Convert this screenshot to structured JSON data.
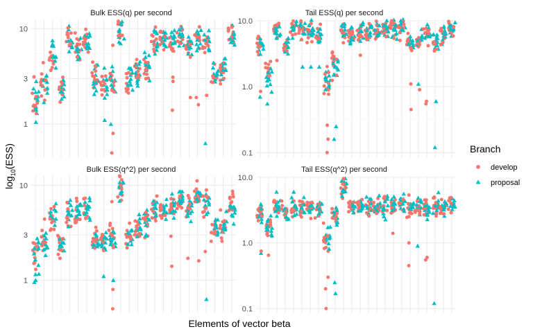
{
  "colors": {
    "develop": "#F8766D",
    "proposal": "#00BFC4",
    "grid_major": "#ebebeb",
    "grid_minor": "#f5f5f5"
  },
  "chart_data": {
    "type": "scatter",
    "xlabel": "Elements of vector beta",
    "ylabel_main": "log",
    "ylabel_sub": "10",
    "ylabel_tail": "(ESS)",
    "y_scale": "log10",
    "grid": true,
    "legend": {
      "title": "Branch",
      "placement": "right",
      "entries": [
        {
          "label": "develop",
          "shape": "circle"
        },
        {
          "label": "proposal",
          "shape": "triangle"
        }
      ]
    },
    "n_elements": 24,
    "panels": [
      {
        "title": "Bulk ESS(q) per second",
        "ylim": [
          0.45,
          12.5
        ],
        "y_ticks": [
          1,
          3,
          10
        ],
        "y_tick_labels": [
          "1",
          "3",
          "10"
        ],
        "centers": [
          1.9,
          2.6,
          5.0,
          2.5,
          7.8,
          6.3,
          7.2,
          3.0,
          2.6,
          2.8,
          9.5,
          2.9,
          3.4,
          4.2,
          7.2,
          8.3,
          7.6,
          8.0,
          6.5,
          8.2,
          7.0,
          3.4,
          3.7,
          8.5
        ],
        "outliers": [
          {
            "i": 0,
            "branch": "develop",
            "v": 1.3
          },
          {
            "i": 0,
            "branch": "proposal",
            "v": 1.05
          },
          {
            "i": 1,
            "branch": "develop",
            "v": 4.4
          },
          {
            "i": 3,
            "branch": "develop",
            "v": 1.7
          },
          {
            "i": 7,
            "branch": "develop",
            "v": 3.6
          },
          {
            "i": 8,
            "branch": "proposal",
            "v": 1.1
          },
          {
            "i": 9,
            "branch": "develop",
            "v": 0.8
          },
          {
            "i": 9,
            "branch": "develop",
            "v": 0.5
          },
          {
            "i": 9,
            "branch": "develop",
            "v": 6.7
          },
          {
            "i": 9,
            "branch": "proposal",
            "v": 1.0
          },
          {
            "i": 16,
            "branch": "develop",
            "v": 1.4
          },
          {
            "i": 16,
            "branch": "develop",
            "v": 2.8
          },
          {
            "i": 16,
            "branch": "develop",
            "v": 3.1
          },
          {
            "i": 18,
            "branch": "develop",
            "v": 1.9
          },
          {
            "i": 19,
            "branch": "develop",
            "v": 1.6
          },
          {
            "i": 19,
            "branch": "develop",
            "v": 1.9
          },
          {
            "i": 20,
            "branch": "proposal",
            "v": 0.63
          },
          {
            "i": 20,
            "branch": "develop",
            "v": 2.0
          }
        ]
      },
      {
        "title": "Tail ESS(q) per second",
        "ylim": [
          0.085,
          10.5
        ],
        "y_ticks": [
          0.1,
          1.0,
          10.0
        ],
        "y_tick_labels": [
          "0.1",
          "1.0",
          "10.0"
        ],
        "centers": [
          4.3,
          1.6,
          7.5,
          4.5,
          7.3,
          7.3,
          7.1,
          6.1,
          1.2,
          2.2,
          6.5,
          6.6,
          6.8,
          6.9,
          7.3,
          7.3,
          7.8,
          8.0,
          4.5,
          4.8,
          6.4,
          4.7,
          5.8,
          7.8
        ],
        "outliers": [
          {
            "i": 0,
            "branch": "proposal",
            "v": 0.7
          },
          {
            "i": 0,
            "branch": "develop",
            "v": 0.85
          },
          {
            "i": 1,
            "branch": "proposal",
            "v": 0.55
          },
          {
            "i": 2,
            "branch": "develop",
            "v": 2.5
          },
          {
            "i": 5,
            "branch": "proposal",
            "v": 2.0
          },
          {
            "i": 6,
            "branch": "proposal",
            "v": 2.0
          },
          {
            "i": 7,
            "branch": "proposal",
            "v": 2.0
          },
          {
            "i": 8,
            "branch": "develop",
            "v": 0.26
          },
          {
            "i": 8,
            "branch": "develop",
            "v": 0.16
          },
          {
            "i": 8,
            "branch": "develop",
            "v": 0.1
          },
          {
            "i": 9,
            "branch": "proposal",
            "v": 0.25
          },
          {
            "i": 9,
            "branch": "proposal",
            "v": 0.16
          },
          {
            "i": 12,
            "branch": "develop",
            "v": 3.0
          },
          {
            "i": 18,
            "branch": "develop",
            "v": 1.1
          },
          {
            "i": 18,
            "branch": "develop",
            "v": 0.45
          },
          {
            "i": 19,
            "branch": "proposal",
            "v": 1.1
          },
          {
            "i": 19,
            "branch": "develop",
            "v": 0.9
          },
          {
            "i": 20,
            "branch": "develop",
            "v": 0.6
          },
          {
            "i": 20,
            "branch": "develop",
            "v": 0.55
          },
          {
            "i": 21,
            "branch": "proposal",
            "v": 0.12
          },
          {
            "i": 21,
            "branch": "proposal",
            "v": 0.6
          }
        ]
      },
      {
        "title": "Bulk ESS(q^2) per second",
        "ylim": [
          0.45,
          12.5
        ],
        "y_ticks": [
          1,
          3,
          10
        ],
        "y_tick_labels": [
          "1",
          "3",
          "10"
        ],
        "centers": [
          1.9,
          2.5,
          4.4,
          2.5,
          5.0,
          5.3,
          5.6,
          2.6,
          2.5,
          2.8,
          9.5,
          2.9,
          3.4,
          4.2,
          5.3,
          5.5,
          6.0,
          7.0,
          6.0,
          8.0,
          6.8,
          3.4,
          3.7,
          5.8
        ],
        "outliers": [
          {
            "i": 0,
            "branch": "develop",
            "v": 1.3
          },
          {
            "i": 0,
            "branch": "proposal",
            "v": 1.0
          },
          {
            "i": 0,
            "branch": "proposal",
            "v": 0.95
          },
          {
            "i": 1,
            "branch": "develop",
            "v": 4.4
          },
          {
            "i": 3,
            "branch": "develop",
            "v": 1.7
          },
          {
            "i": 7,
            "branch": "develop",
            "v": 3.6
          },
          {
            "i": 8,
            "branch": "proposal",
            "v": 1.1
          },
          {
            "i": 9,
            "branch": "develop",
            "v": 0.8
          },
          {
            "i": 9,
            "branch": "develop",
            "v": 0.5
          },
          {
            "i": 9,
            "branch": "develop",
            "v": 6.7
          },
          {
            "i": 9,
            "branch": "proposal",
            "v": 1.0
          },
          {
            "i": 16,
            "branch": "develop",
            "v": 1.4
          },
          {
            "i": 16,
            "branch": "develop",
            "v": 2.9
          },
          {
            "i": 18,
            "branch": "develop",
            "v": 1.7
          },
          {
            "i": 19,
            "branch": "develop",
            "v": 1.6
          },
          {
            "i": 20,
            "branch": "proposal",
            "v": 0.63
          },
          {
            "i": 20,
            "branch": "develop",
            "v": 2.0
          }
        ]
      },
      {
        "title": "Tail ESS(q^2) per second",
        "ylim": [
          0.085,
          10.5
        ],
        "y_ticks": [
          0.1,
          1.0,
          10.0
        ],
        "y_tick_labels": [
          "0.1",
          "1.0",
          "10.0"
        ],
        "centers": [
          3.0,
          1.8,
          3.5,
          2.9,
          3.5,
          3.6,
          3.7,
          3.3,
          1.2,
          2.6,
          7.0,
          3.7,
          3.6,
          3.8,
          3.6,
          3.7,
          3.8,
          3.9,
          3.5,
          3.4,
          3.3,
          3.7,
          3.4,
          3.9
        ],
        "outliers": [
          {
            "i": 0,
            "branch": "proposal",
            "v": 0.7
          },
          {
            "i": 0,
            "branch": "develop",
            "v": 0.75
          },
          {
            "i": 1,
            "branch": "develop",
            "v": 0.65
          },
          {
            "i": 2,
            "branch": "proposal",
            "v": 6.0
          },
          {
            "i": 4,
            "branch": "proposal",
            "v": 6.0
          },
          {
            "i": 8,
            "branch": "develop",
            "v": 0.3
          },
          {
            "i": 8,
            "branch": "develop",
            "v": 0.2
          },
          {
            "i": 8,
            "branch": "develop",
            "v": 0.1
          },
          {
            "i": 9,
            "branch": "proposal",
            "v": 0.25
          },
          {
            "i": 9,
            "branch": "proposal",
            "v": 0.17
          },
          {
            "i": 16,
            "branch": "develop",
            "v": 1.4
          },
          {
            "i": 18,
            "branch": "develop",
            "v": 1.0
          },
          {
            "i": 18,
            "branch": "develop",
            "v": 0.45
          },
          {
            "i": 19,
            "branch": "proposal",
            "v": 0.9
          },
          {
            "i": 20,
            "branch": "develop",
            "v": 0.6
          },
          {
            "i": 20,
            "branch": "develop",
            "v": 0.55
          },
          {
            "i": 21,
            "branch": "proposal",
            "v": 0.12
          },
          {
            "i": 21,
            "branch": "develop",
            "v": 5.0
          }
        ]
      }
    ]
  }
}
